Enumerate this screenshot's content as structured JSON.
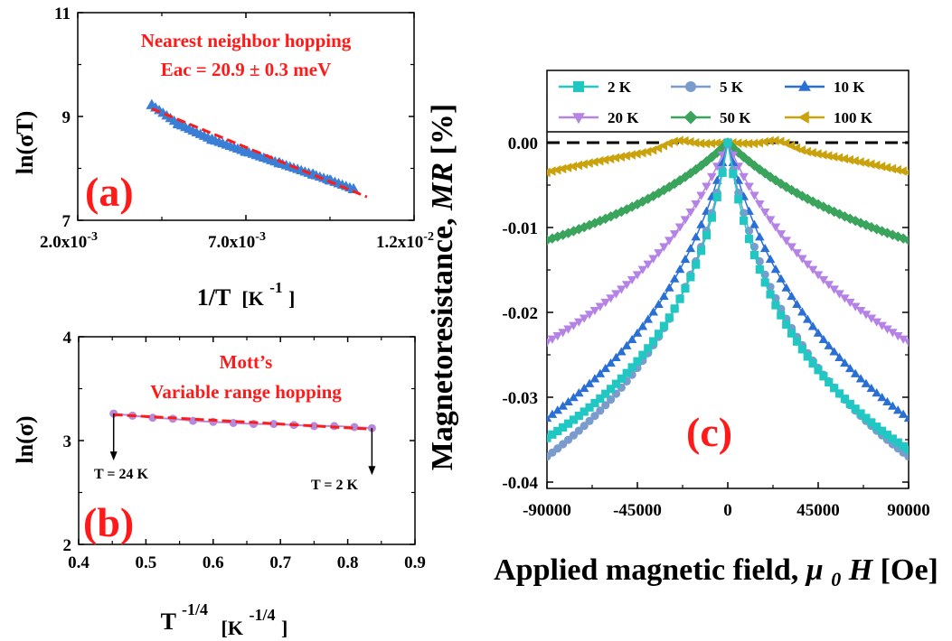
{
  "chart_data": [
    {
      "panel": "a",
      "type": "scatter",
      "annotation_lines": [
        "Nearest neighbor hopping",
        "Eac = 20.9 ± 0.3 meV"
      ],
      "panel_label": "(a)",
      "xlabel_main": "1/T",
      "xlabel_unit_open": "[K",
      "xlabel_unit_sup": "-1",
      "xlabel_unit_close": "]",
      "ylabel": "ln(σT)",
      "xlim": [
        0.002,
        0.012
      ],
      "ylim": [
        7,
        11
      ],
      "xticks": [
        0.002,
        0.007,
        0.012
      ],
      "xtick_labels": [
        {
          "mant": "2.0x10",
          "exp": "-3"
        },
        {
          "mant": "7.0x10",
          "exp": "-3"
        },
        {
          "mant": "1.2x10",
          "exp": "-2"
        }
      ],
      "yticks": [
        7,
        9,
        11
      ],
      "ytick_labels": [
        "7",
        "9",
        "11"
      ],
      "series": [
        {
          "color": "#3a7fd5",
          "marker": "triangle",
          "x": [
            0.0042,
            0.005,
            0.006,
            0.007,
            0.008,
            0.009,
            0.0095,
            0.0102
          ],
          "y": [
            9.22,
            8.85,
            8.55,
            8.32,
            8.1,
            7.88,
            7.77,
            7.6
          ]
        },
        {
          "color": "#ff1a1a",
          "marker": "dash-line",
          "x": [
            0.0042,
            0.0106
          ],
          "y": [
            9.15,
            7.45
          ]
        }
      ]
    },
    {
      "panel": "b",
      "type": "scatter",
      "annotation_lines": [
        "Mott’s",
        "Variable range hopping"
      ],
      "panel_label": "(b)",
      "point_labels": [
        "T = 24 K",
        "T = 2 K"
      ],
      "xlabel_main": "T",
      "xlabel_sup": "-1/4",
      "xlabel_unit_open": "[K",
      "xlabel_unit_sup": "-1/4",
      "xlabel_unit_close": "]",
      "ylabel": "ln(σ)",
      "xlim": [
        0.4,
        0.9
      ],
      "ylim": [
        2,
        4
      ],
      "xticks": [
        0.4,
        0.5,
        0.6,
        0.7,
        0.8,
        0.9
      ],
      "xtick_labels": [
        "0.4",
        "0.5",
        "0.6",
        "0.7",
        "0.8",
        "0.9"
      ],
      "yticks": [
        2,
        3,
        4
      ],
      "ytick_labels": [
        "2",
        "3",
        "4"
      ],
      "series": [
        {
          "color": "#b58ad9",
          "marker": "circle",
          "x": [
            0.452,
            0.48,
            0.51,
            0.54,
            0.57,
            0.6,
            0.63,
            0.66,
            0.69,
            0.72,
            0.75,
            0.78,
            0.81,
            0.836
          ],
          "y": [
            3.26,
            3.24,
            3.22,
            3.21,
            3.19,
            3.18,
            3.17,
            3.16,
            3.16,
            3.15,
            3.14,
            3.14,
            3.13,
            3.12
          ]
        },
        {
          "color": "#ff1a1a",
          "marker": "dash-line",
          "x": [
            0.452,
            0.836
          ],
          "y": [
            3.25,
            3.11
          ]
        }
      ]
    },
    {
      "panel": "c",
      "type": "line",
      "panel_label": "(c)",
      "xlabel_main": "Applied magnetic field, ",
      "xlabel_italic": "μ",
      "xlabel_sub": "0",
      "xlabel_italic2": "H",
      "xlabel_unit": " [Oe]",
      "ylabel_main": "Magnetoresistance, ",
      "ylabel_italic": "MR",
      "ylabel_unit": " [%]",
      "xlim": [
        -90000,
        90000
      ],
      "ylim": [
        -0.04,
        0.0
      ],
      "xticks": [
        -90000,
        -45000,
        0,
        45000,
        90000
      ],
      "xtick_labels": [
        "-90000",
        "-45000",
        "0",
        "45000",
        "90000"
      ],
      "yticks": [
        0.0,
        -0.01,
        -0.02,
        -0.03,
        -0.04
      ],
      "ytick_labels": [
        "0.00",
        "-0.01",
        "-0.02",
        "-0.03",
        "-0.04"
      ],
      "zero_line": true,
      "legend_position": "top",
      "series": [
        {
          "name": "2 K",
          "color": "#21c7c2",
          "marker": "square",
          "edge": -0.0348,
          "width": 10000
        },
        {
          "name": "5 K",
          "color": "#7a9ccc",
          "marker": "circle",
          "edge": -0.037,
          "width": 14000
        },
        {
          "name": "10 K",
          "color": "#2a6fd4",
          "marker": "triangle-up",
          "edge": -0.0325,
          "width": 20000
        },
        {
          "name": "20 K",
          "color": "#b582e6",
          "marker": "triangle-down",
          "edge": -0.0235,
          "width": 30000
        },
        {
          "name": "50 K",
          "color": "#3aa35c",
          "marker": "diamond",
          "edge": -0.0115,
          "width": 45000
        },
        {
          "name": "100 K",
          "color": "#c9a20c",
          "marker": "triangle-left",
          "edge": -0.0035,
          "width": 40000
        }
      ]
    }
  ]
}
